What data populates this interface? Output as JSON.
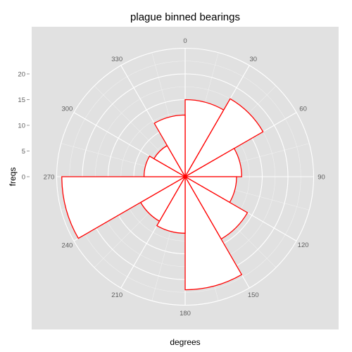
{
  "chart_data": {
    "type": "polar-bar",
    "title": "plague binned bearings",
    "xlabel": "degrees",
    "ylabel": "freqs",
    "angle_unit": "degrees",
    "angle_ticks": [
      0,
      30,
      60,
      90,
      120,
      150,
      180,
      210,
      240,
      270,
      300,
      330
    ],
    "radial_ticks": [
      0,
      5,
      10,
      15,
      20
    ],
    "radial_max": 25,
    "bin_width": 30,
    "bins": [
      {
        "start": 0,
        "end": 30,
        "freq": 15
      },
      {
        "start": 30,
        "end": 60,
        "freq": 17.5
      },
      {
        "start": 60,
        "end": 90,
        "freq": 11
      },
      {
        "start": 90,
        "end": 120,
        "freq": 10
      },
      {
        "start": 120,
        "end": 150,
        "freq": 14
      },
      {
        "start": 150,
        "end": 180,
        "freq": 22
      },
      {
        "start": 180,
        "end": 210,
        "freq": 11
      },
      {
        "start": 210,
        "end": 240,
        "freq": 10
      },
      {
        "start": 240,
        "end": 270,
        "freq": 24
      },
      {
        "start": 270,
        "end": 300,
        "freq": 8
      },
      {
        "start": 300,
        "end": 330,
        "freq": 7
      },
      {
        "start": 330,
        "end": 360,
        "freq": 12
      }
    ],
    "colors": {
      "panel_bg": "#e1e1e1",
      "grid_major": "#ffffff",
      "grid_minor": "#f0f0f0",
      "bar_fill": "#ffffff",
      "bar_stroke": "#ff0000",
      "tick_text": "#5e5e5e"
    },
    "grid": true,
    "legend": "none"
  }
}
